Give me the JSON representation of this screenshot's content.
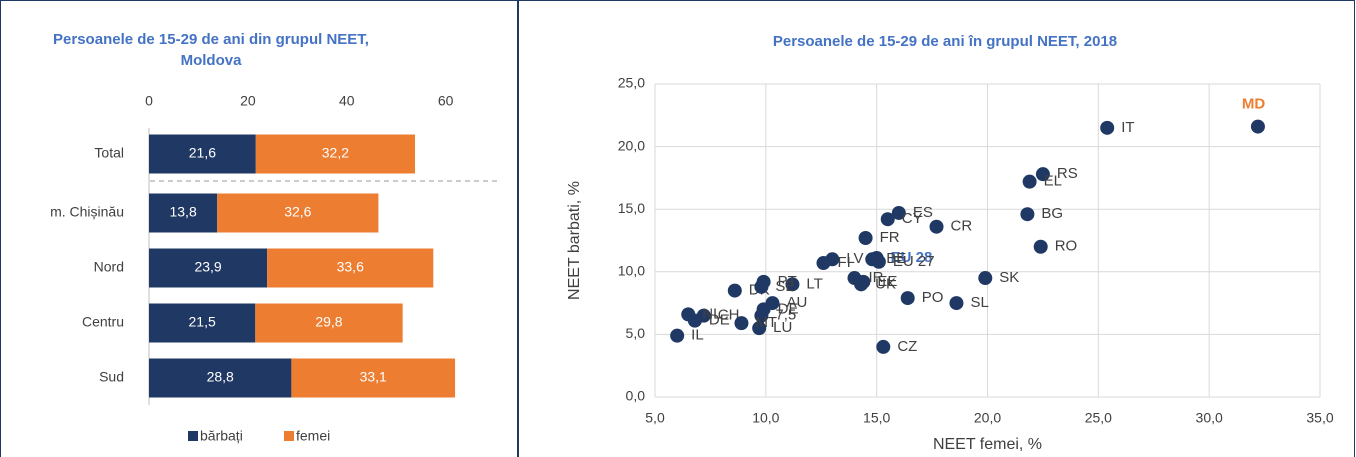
{
  "chart_data": [
    {
      "type": "hbar_stacked",
      "title": "Persoanele de 15-29 de ani din grupul NEET, Moldova",
      "categories": [
        "Total",
        "m. Chișinău",
        "Nord",
        "Centru",
        "Sud"
      ],
      "series": [
        {
          "name": "bărbați",
          "color": "#203864",
          "values": [
            21.6,
            13.8,
            23.9,
            21.5,
            28.8
          ],
          "value_labels": [
            "21,6",
            "13,8",
            "23,9",
            "21,5",
            "28,8"
          ]
        },
        {
          "name": "femei",
          "color": "#ed7d31",
          "values": [
            32.2,
            32.6,
            33.6,
            29.8,
            33.1
          ],
          "value_labels": [
            "32,2",
            "32,6",
            "33,6",
            "29,8",
            "33,1"
          ]
        }
      ],
      "xlim": [
        0,
        72
      ],
      "xticks": [
        0,
        20,
        40,
        60
      ],
      "legend": "bottom"
    },
    {
      "type": "scatter",
      "title": "Persoanele de 15-29 de ani în grupul NEET, 2018",
      "x_label": "NEET femei, %",
      "y_label": "NEET barbati, %",
      "color": "#203864",
      "xlim": [
        5,
        35
      ],
      "ylim": [
        0,
        25
      ],
      "xticks": [
        {
          "value": 5,
          "label": "5,0"
        },
        {
          "value": 10,
          "label": "10,0"
        },
        {
          "value": 15,
          "label": "15,0"
        },
        {
          "value": 20,
          "label": "20,0"
        },
        {
          "value": 25,
          "label": "25,0"
        },
        {
          "value": 30,
          "label": "30,0"
        },
        {
          "value": 35,
          "label": "35,0"
        }
      ],
      "yticks": [
        {
          "value": 0,
          "label": "0,0"
        },
        {
          "value": 5,
          "label": "5,0"
        },
        {
          "value": 10,
          "label": "10,0"
        },
        {
          "value": 15,
          "label": "15,0"
        },
        {
          "value": 20,
          "label": "20,0"
        },
        {
          "value": 25,
          "label": "25,0"
        }
      ],
      "grid": true,
      "points": [
        {
          "label": "MD",
          "x": 32.2,
          "y": 21.6,
          "label_color": "#ed7d31"
        },
        {
          "label": "IT",
          "x": 25.4,
          "y": 21.5
        },
        {
          "label": "RS",
          "x": 22.5,
          "y": 17.8
        },
        {
          "label": "EL",
          "x": 21.9,
          "y": 17.2
        },
        {
          "label": "BG",
          "x": 21.8,
          "y": 14.6
        },
        {
          "label": "RO",
          "x": 22.4,
          "y": 12.0
        },
        {
          "label": "SK",
          "x": 19.9,
          "y": 9.5
        },
        {
          "label": "SL",
          "x": 18.6,
          "y": 7.5
        },
        {
          "label": "PO",
          "x": 16.4,
          "y": 7.9
        },
        {
          "label": "CZ",
          "x": 15.3,
          "y": 4.0
        },
        {
          "label": "CR",
          "x": 17.7,
          "y": 13.6
        },
        {
          "label": "ES",
          "x": 16.0,
          "y": 14.7
        },
        {
          "label": "CY",
          "x": 15.5,
          "y": 14.2
        },
        {
          "label": "FR",
          "x": 14.5,
          "y": 12.7
        },
        {
          "label": "EU 28",
          "x": 15.0,
          "y": 11.1,
          "label_color": "#4472c4"
        },
        {
          "label": "BE",
          "x": 14.8,
          "y": 11.0
        },
        {
          "label": "EU 27",
          "x": 15.1,
          "y": 10.8
        },
        {
          "label": "EE",
          "x": 14.4,
          "y": 9.2
        },
        {
          "label": "UK",
          "x": 14.3,
          "y": 9.0
        },
        {
          "label": "IR",
          "x": 14.0,
          "y": 9.5
        },
        {
          "label": "FI",
          "x": 12.6,
          "y": 10.7
        },
        {
          "label": "LV",
          "x": 13.0,
          "y": 11.0
        },
        {
          "label": "LT",
          "x": 11.2,
          "y": 9.0
        },
        {
          "label": "DK",
          "x": 8.6,
          "y": 8.5
        },
        {
          "label": "PT",
          "x": 9.9,
          "y": 9.2
        },
        {
          "label": "SE",
          "x": 9.8,
          "y": 8.8
        },
        {
          "label": "CH",
          "x": 7.2,
          "y": 6.5
        },
        {
          "label": "AU",
          "x": 10.3,
          "y": 7.5
        },
        {
          "label": "DE",
          "x": 9.9,
          "y": 7.0
        },
        {
          "label": "7,5",
          "x": 9.8,
          "y": 6.5
        },
        {
          "label": "LU",
          "x": 9.7,
          "y": 5.5
        },
        {
          "label": "MT",
          "x": 8.9,
          "y": 5.9
        },
        {
          "label": "DE",
          "x": 6.8,
          "y": 6.1
        },
        {
          "label": "NL",
          "x": 6.5,
          "y": 6.6
        },
        {
          "label": "IL",
          "x": 6.0,
          "y": 4.9
        }
      ]
    }
  ]
}
